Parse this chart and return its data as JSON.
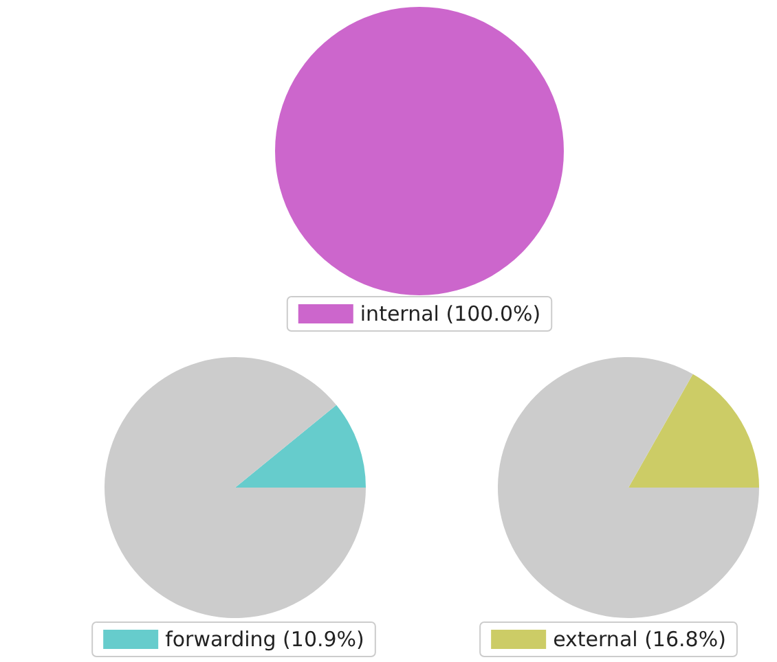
{
  "chart_data": [
    {
      "type": "pie",
      "categories": [
        "internal (100.0%)"
      ],
      "values": [
        100
      ],
      "colors": [
        "#cc66cc"
      ],
      "legend": "bottom"
    },
    {
      "type": "pie",
      "categories": [
        "forwarding (10.9%)",
        null
      ],
      "values": [
        10.9,
        89.1
      ],
      "colors": [
        "#66cccc",
        "#cccccc"
      ],
      "legend": "bottom"
    },
    {
      "type": "pie",
      "categories": [
        "external (16.8%)",
        null
      ],
      "values": [
        16.8,
        83.2
      ],
      "colors": [
        "#cccc66",
        "#cccccc"
      ],
      "legend": "bottom"
    }
  ]
}
